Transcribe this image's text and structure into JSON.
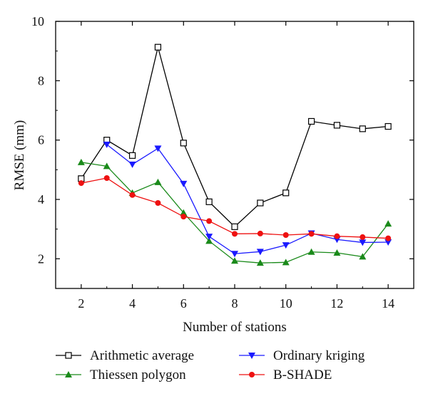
{
  "chart_data": {
    "type": "line",
    "xlabel": "Number of stations",
    "ylabel": "RMSE (mm)",
    "xlim": [
      1,
      15
    ],
    "ylim": [
      1,
      10
    ],
    "xticks": [
      2,
      4,
      6,
      8,
      10,
      12,
      14
    ],
    "yticks": [
      2,
      4,
      6,
      8,
      10
    ],
    "grid": false,
    "legend_position": "bottom",
    "x": [
      2,
      3,
      4,
      5,
      6,
      7,
      8,
      9,
      10,
      11,
      12,
      13,
      14
    ],
    "series": [
      {
        "name": "Arithmetic average",
        "color": "#000000",
        "marker": "open-square",
        "values": [
          4.7,
          6.0,
          5.48,
          9.13,
          5.9,
          3.92,
          3.08,
          3.88,
          4.22,
          6.63,
          6.5,
          6.38,
          6.46
        ]
      },
      {
        "name": "Thiessen polygon",
        "color": "#1a8a1a",
        "marker": "triangle-up",
        "values": [
          5.25,
          5.12,
          4.22,
          4.58,
          3.55,
          2.6,
          1.93,
          1.86,
          1.88,
          2.23,
          2.2,
          2.07,
          3.18
        ]
      },
      {
        "name": "Ordinary kriging",
        "color": "#1a1aff",
        "marker": "triangle-down",
        "values": [
          null,
          5.85,
          5.18,
          5.72,
          4.53,
          2.75,
          2.17,
          2.24,
          2.46,
          2.86,
          2.65,
          2.55,
          2.56
        ]
      },
      {
        "name": "B-SHADE",
        "color": "#ee1111",
        "marker": "circle",
        "values": [
          4.55,
          4.72,
          4.15,
          3.88,
          3.42,
          3.27,
          2.84,
          2.85,
          2.8,
          2.84,
          2.76,
          2.73,
          2.69
        ]
      }
    ]
  }
}
